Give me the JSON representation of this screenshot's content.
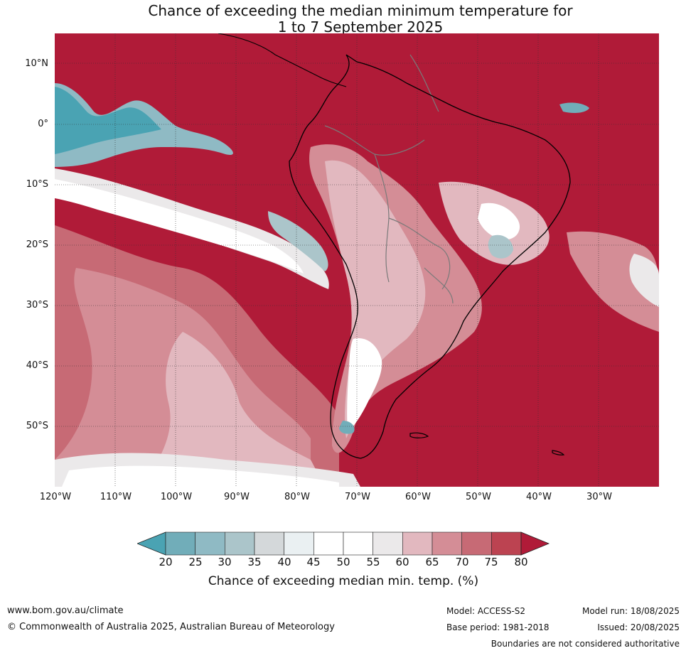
{
  "title": {
    "line1": "Chance of exceeding the median minimum temperature for",
    "line2": "1 to 7 September 2025"
  },
  "map": {
    "region": "South America",
    "lat_labels": [
      "10°N",
      "0°",
      "10°S",
      "20°S",
      "30°S",
      "40°S",
      "50°S"
    ],
    "lon_labels": [
      "120°W",
      "110°W",
      "100°W",
      "90°W",
      "80°W",
      "70°W",
      "60°W",
      "50°W",
      "40°W",
      "30°W"
    ],
    "dominant_color": "#b01b38"
  },
  "colorbar": {
    "ticks": [
      "20",
      "25",
      "30",
      "35",
      "40",
      "45",
      "50",
      "55",
      "60",
      "65",
      "70",
      "75",
      "80"
    ],
    "colors": [
      "#4aa3b3",
      "#71adb9",
      "#8fbac4",
      "#abc5ca",
      "#d4d8da",
      "#eaf0f2",
      "#ffffff",
      "#ffffff",
      "#ebe9ea",
      "#e2b8bf",
      "#d48d96",
      "#c76a75",
      "#bc4351",
      "#b01b38"
    ],
    "label": "Chance of exceeding median min. temp. (%)"
  },
  "footer": {
    "website": "www.bom.gov.au/climate",
    "copyright": "© Commonwealth of Australia 2025, Australian Bureau of Meteorology",
    "model": "Model: ACCESS-S2",
    "base_period": "Base period: 1981-2018",
    "model_run": "Model run: 18/08/2025",
    "issued": "Issued: 20/08/2025",
    "disclaimer": "Boundaries are not considered authoritative"
  }
}
